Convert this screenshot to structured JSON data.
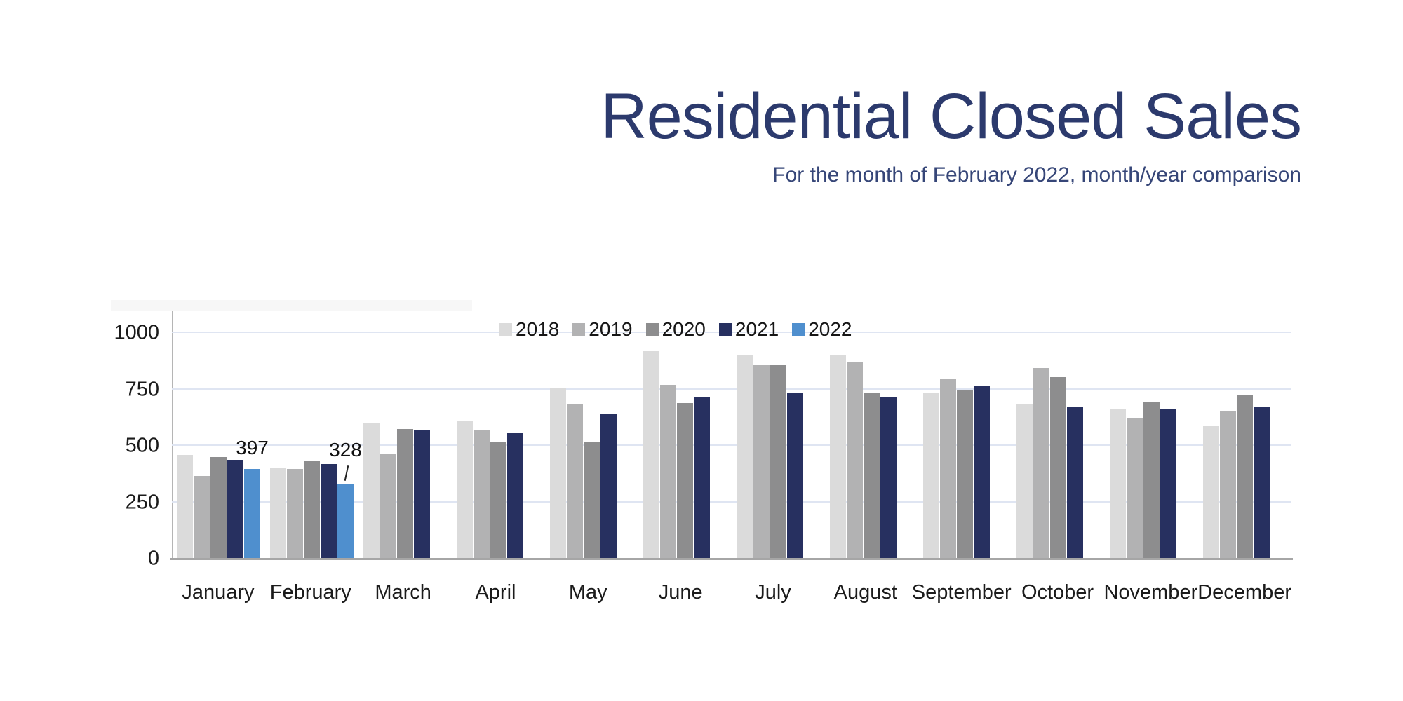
{
  "header": {
    "title": "Residential Closed Sales",
    "subtitle": "For the month of February 2022, month/year comparison"
  },
  "colors": {
    "title_navy": "#2c3a6d",
    "subtitle_navy": "#364678",
    "gridline": "#dfe5f2",
    "axis": "#a6a6a6"
  },
  "chart_data": {
    "type": "bar",
    "title": "Residential Closed Sales",
    "subtitle": "For the month of February 2022, month/year comparison",
    "categories": [
      "January",
      "February",
      "March",
      "April",
      "May",
      "June",
      "July",
      "August",
      "September",
      "October",
      "November",
      "December"
    ],
    "series": [
      {
        "name": "2018",
        "color": "#dbdbdb",
        "values": [
          460,
          400,
          600,
          610,
          755,
          920,
          900,
          900,
          735,
          685,
          660,
          590
        ]
      },
      {
        "name": "2019",
        "color": "#b2b2b3",
        "values": [
          365,
          398,
          465,
          572,
          682,
          770,
          860,
          870,
          795,
          845,
          620,
          652
        ]
      },
      {
        "name": "2020",
        "color": "#8d8d8e",
        "values": [
          450,
          436,
          576,
          518,
          515,
          690,
          858,
          736,
          745,
          805,
          692,
          725
        ]
      },
      {
        "name": "2021",
        "color": "#273060",
        "values": [
          438,
          420,
          570,
          556,
          641,
          716,
          736,
          716,
          765,
          675,
          660,
          672
        ]
      },
      {
        "name": "2022",
        "color": "#4f8fce",
        "values": [
          397,
          328,
          null,
          null,
          null,
          null,
          null,
          null,
          null,
          null,
          null,
          null
        ]
      }
    ],
    "ylim": [
      0,
      1000
    ],
    "yticks": [
      0,
      250,
      500,
      750,
      1000
    ],
    "grid": true,
    "legend_position": "top-center",
    "annotations": [
      {
        "series_index": 4,
        "category_index": 0,
        "text": "397",
        "leader": false
      },
      {
        "series_index": 4,
        "category_index": 1,
        "text": "328",
        "leader": true
      }
    ]
  }
}
